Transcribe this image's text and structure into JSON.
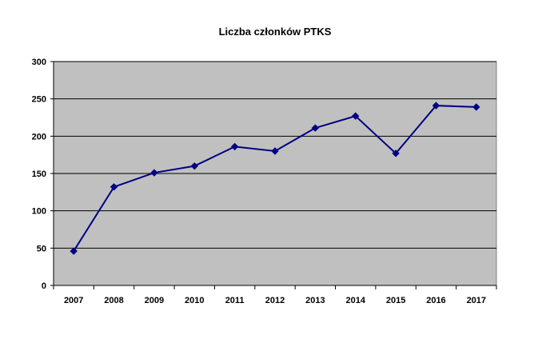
{
  "chart_data": {
    "type": "line",
    "title": "Liczba członków PTKS",
    "xlabel": "",
    "ylabel": "",
    "categories": [
      "2007",
      "2008",
      "2009",
      "2010",
      "2011",
      "2012",
      "2013",
      "2014",
      "2015",
      "2016",
      "2017"
    ],
    "series": [
      {
        "values": [
          46,
          132,
          151,
          160,
          186,
          180,
          211,
          227,
          177,
          241,
          239
        ]
      }
    ],
    "ylim": [
      0,
      300
    ],
    "yticks": [
      0,
      50,
      100,
      150,
      200,
      250,
      300
    ],
    "grid": true,
    "legend": "none",
    "plot_background": "#C0C0C0",
    "line_color": "#000080",
    "marker": "diamond"
  }
}
